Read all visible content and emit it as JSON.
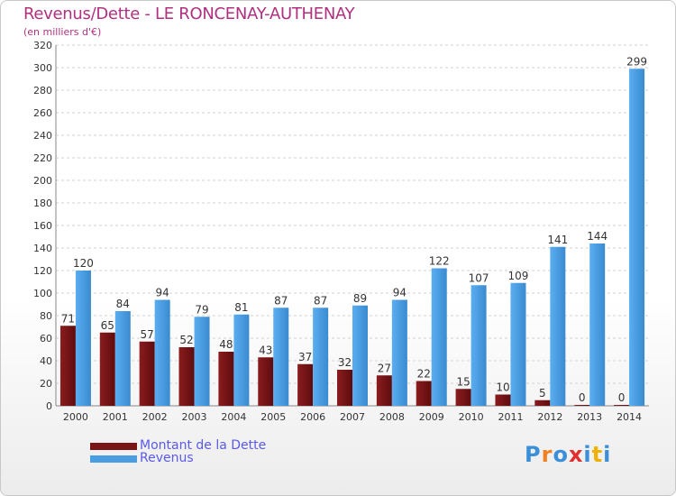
{
  "header": {
    "title": "Revenus/Dette - LE RONCENAY-AUTHENAY",
    "subtitle": "(en milliers d'€)"
  },
  "chart_data": {
    "type": "bar",
    "title": "Revenus/Dette - LE RONCENAY-AUTHENAY",
    "subtitle": "(en milliers d'€)",
    "xlabel": "",
    "ylabel": "",
    "categories": [
      "2000",
      "2001",
      "2002",
      "2003",
      "2004",
      "2005",
      "2006",
      "2007",
      "2008",
      "2009",
      "2010",
      "2011",
      "2012",
      "2013",
      "2014"
    ],
    "series": [
      {
        "name": "Montant de la Dette",
        "color": "#7a1416",
        "values": [
          71,
          65,
          57,
          52,
          48,
          43,
          37,
          32,
          27,
          22,
          15,
          10,
          5,
          0,
          0
        ]
      },
      {
        "name": "Revenus",
        "color": "#4a9de0",
        "values": [
          120,
          84,
          94,
          79,
          81,
          87,
          87,
          89,
          94,
          122,
          107,
          109,
          141,
          144,
          299
        ]
      }
    ],
    "ylim": [
      0,
      320
    ],
    "ytick_step": 20,
    "grid": true,
    "data_labels": true,
    "legend_position": "bottom-left"
  },
  "legend": {
    "items": [
      {
        "label": "Montant de la Dette",
        "color": "#7a1416",
        "text_color": "#5a5ae8"
      },
      {
        "label": "Revenus",
        "color": "#4a9de0",
        "text_color": "#5a5ae8"
      }
    ]
  },
  "logo": {
    "text": "Proxiti",
    "letter_colors": [
      "#3a8fd8",
      "#f08020",
      "#3a8fd8",
      "#e03030",
      "#3a8fd8",
      "#f0b000",
      "#3a8fd8"
    ]
  }
}
